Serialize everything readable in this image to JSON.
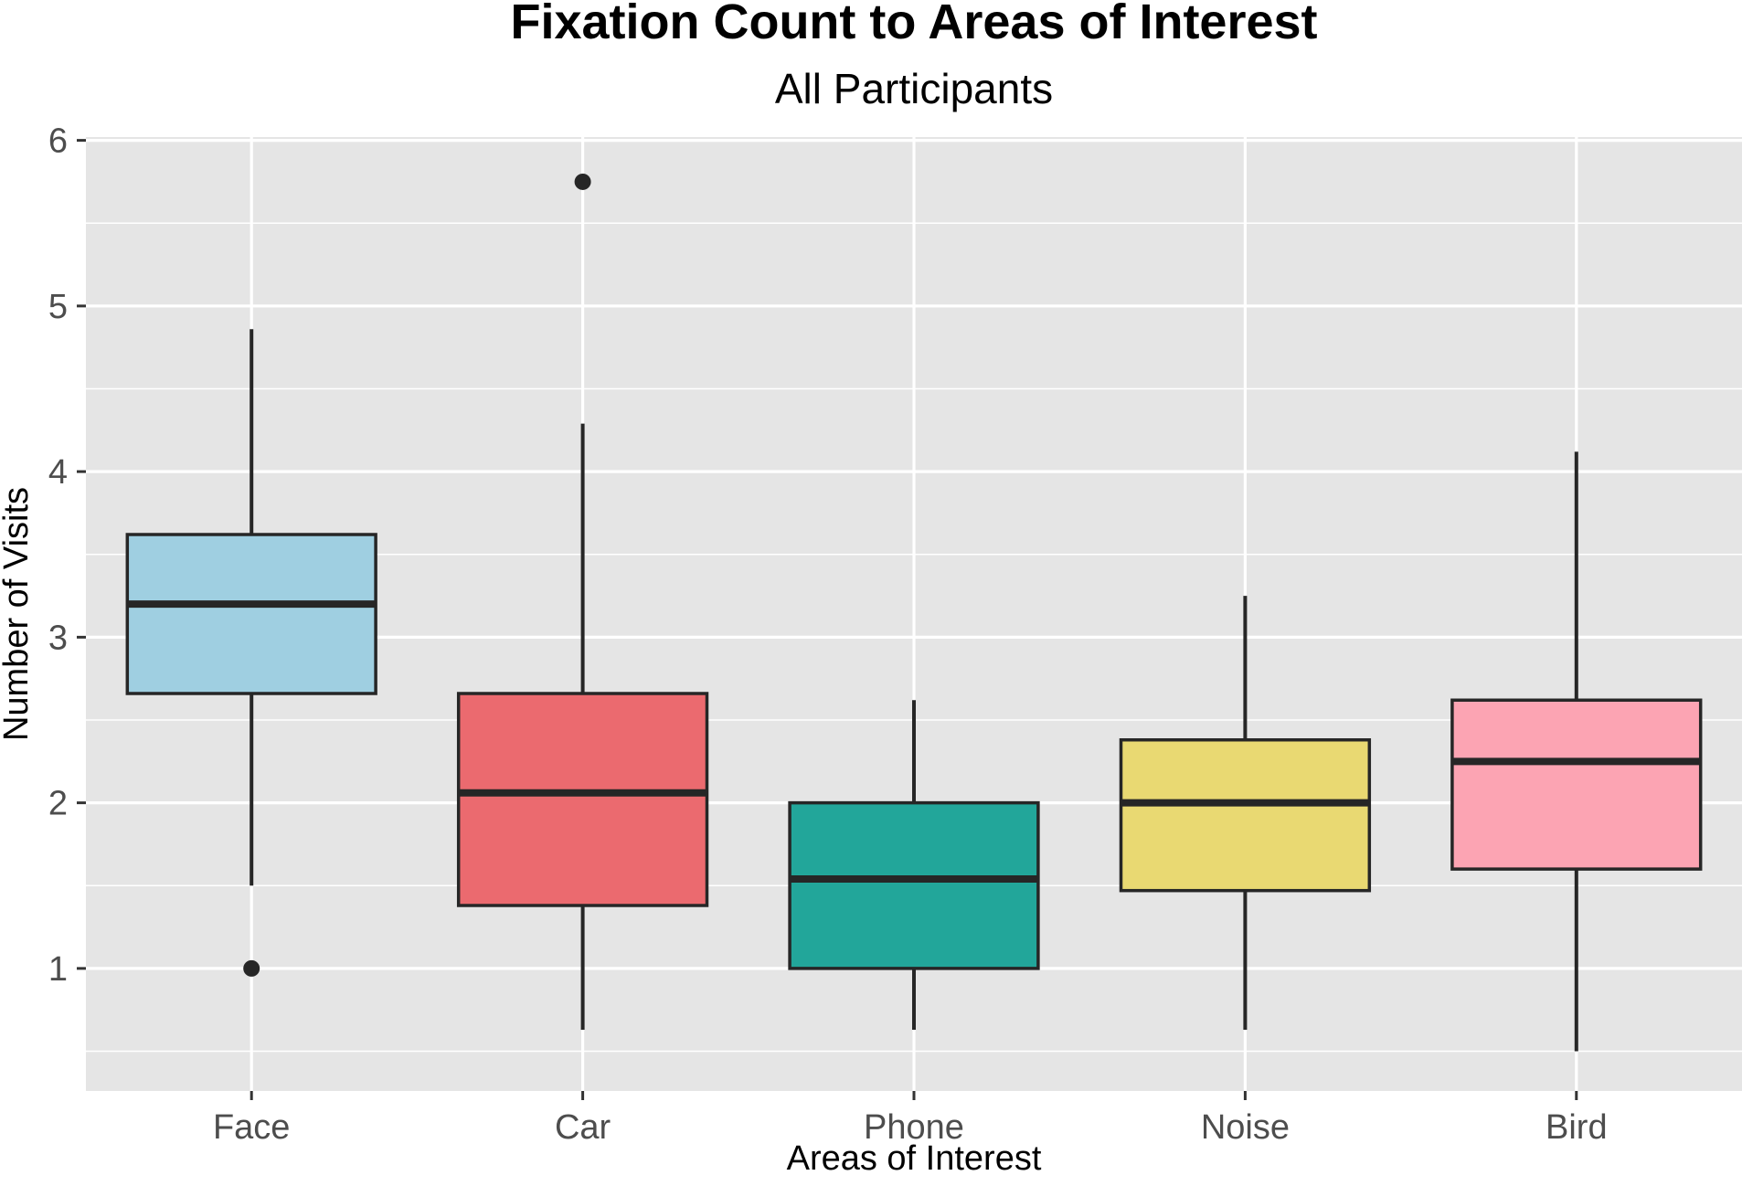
{
  "chart_data": {
    "type": "boxplot",
    "title": "Fixation Count to Areas of Interest",
    "subtitle": "All Participants",
    "xlabel": "Areas of Interest",
    "ylabel": "Number of Visits",
    "ylim": [
      0.26,
      6.02
    ],
    "yticks": [
      1,
      2,
      3,
      4,
      5,
      6
    ],
    "grid": true,
    "legend": "none",
    "categories": [
      "Face",
      "Car",
      "Phone",
      "Noise",
      "Bird"
    ],
    "boxes": [
      {
        "category": "Face",
        "min": 1.5,
        "q1": 2.66,
        "median": 3.2,
        "q3": 3.62,
        "max": 4.86,
        "outliers": [
          1.0
        ],
        "color": "#9fcfe1"
      },
      {
        "category": "Car",
        "min": 0.63,
        "q1": 1.38,
        "median": 2.06,
        "q3": 2.66,
        "max": 4.29,
        "outliers": [
          5.75
        ],
        "color": "#eb6a6f"
      },
      {
        "category": "Phone",
        "min": 0.63,
        "q1": 1.0,
        "median": 1.54,
        "q3": 2.0,
        "max": 2.62,
        "outliers": [],
        "color": "#22a69a"
      },
      {
        "category": "Noise",
        "min": 0.63,
        "q1": 1.47,
        "median": 2.0,
        "q3": 2.38,
        "max": 3.25,
        "outliers": [],
        "color": "#e9d972"
      },
      {
        "category": "Bird",
        "min": 0.5,
        "q1": 1.6,
        "median": 2.25,
        "q3": 2.62,
        "max": 4.12,
        "outliers": [],
        "color": "#fca4b3"
      }
    ]
  },
  "colors": {
    "panel_background": "#e5e5e5",
    "grid": "#ffffff",
    "outline": "#262626",
    "tick_text": "#4d4d4d"
  }
}
